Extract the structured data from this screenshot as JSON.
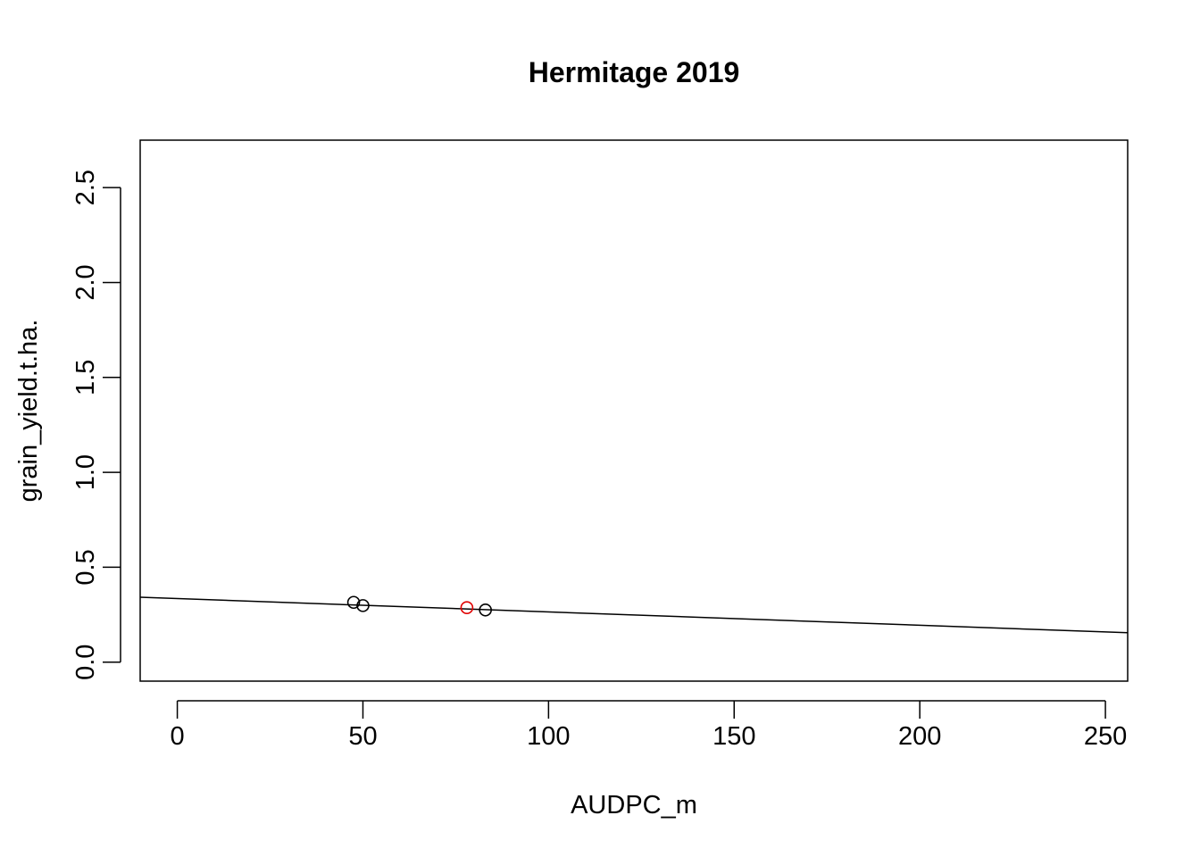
{
  "chart_data": {
    "type": "scatter",
    "title": "Hermitage 2019",
    "xlabel": "AUDPC_m",
    "ylabel": "grain_yield.t.ha.",
    "xlim": [
      -10,
      256
    ],
    "ylim": [
      -0.1,
      2.75
    ],
    "x_ticks": [
      0,
      50,
      100,
      150,
      200,
      250
    ],
    "y_ticks": [
      0.0,
      0.5,
      1.0,
      1.5,
      2.0,
      2.5
    ],
    "x_tick_labels": [
      "0",
      "50",
      "100",
      "150",
      "200",
      "250"
    ],
    "y_tick_labels": [
      "0.0",
      "0.5",
      "1.0",
      "1.5",
      "2.0",
      "2.5"
    ],
    "grid": false,
    "series": [
      {
        "color": "#000000",
        "points": [
          {
            "x": 47.5,
            "y": 0.315
          },
          {
            "x": 50,
            "y": 0.298
          },
          {
            "x": 83,
            "y": 0.275
          }
        ]
      },
      {
        "color": "#e00000",
        "points": [
          {
            "x": 78,
            "y": 0.287
          }
        ]
      }
    ],
    "regression_line": {
      "color": "#000000",
      "x": [
        -10,
        256
      ],
      "y": [
        0.342,
        0.155
      ]
    }
  }
}
